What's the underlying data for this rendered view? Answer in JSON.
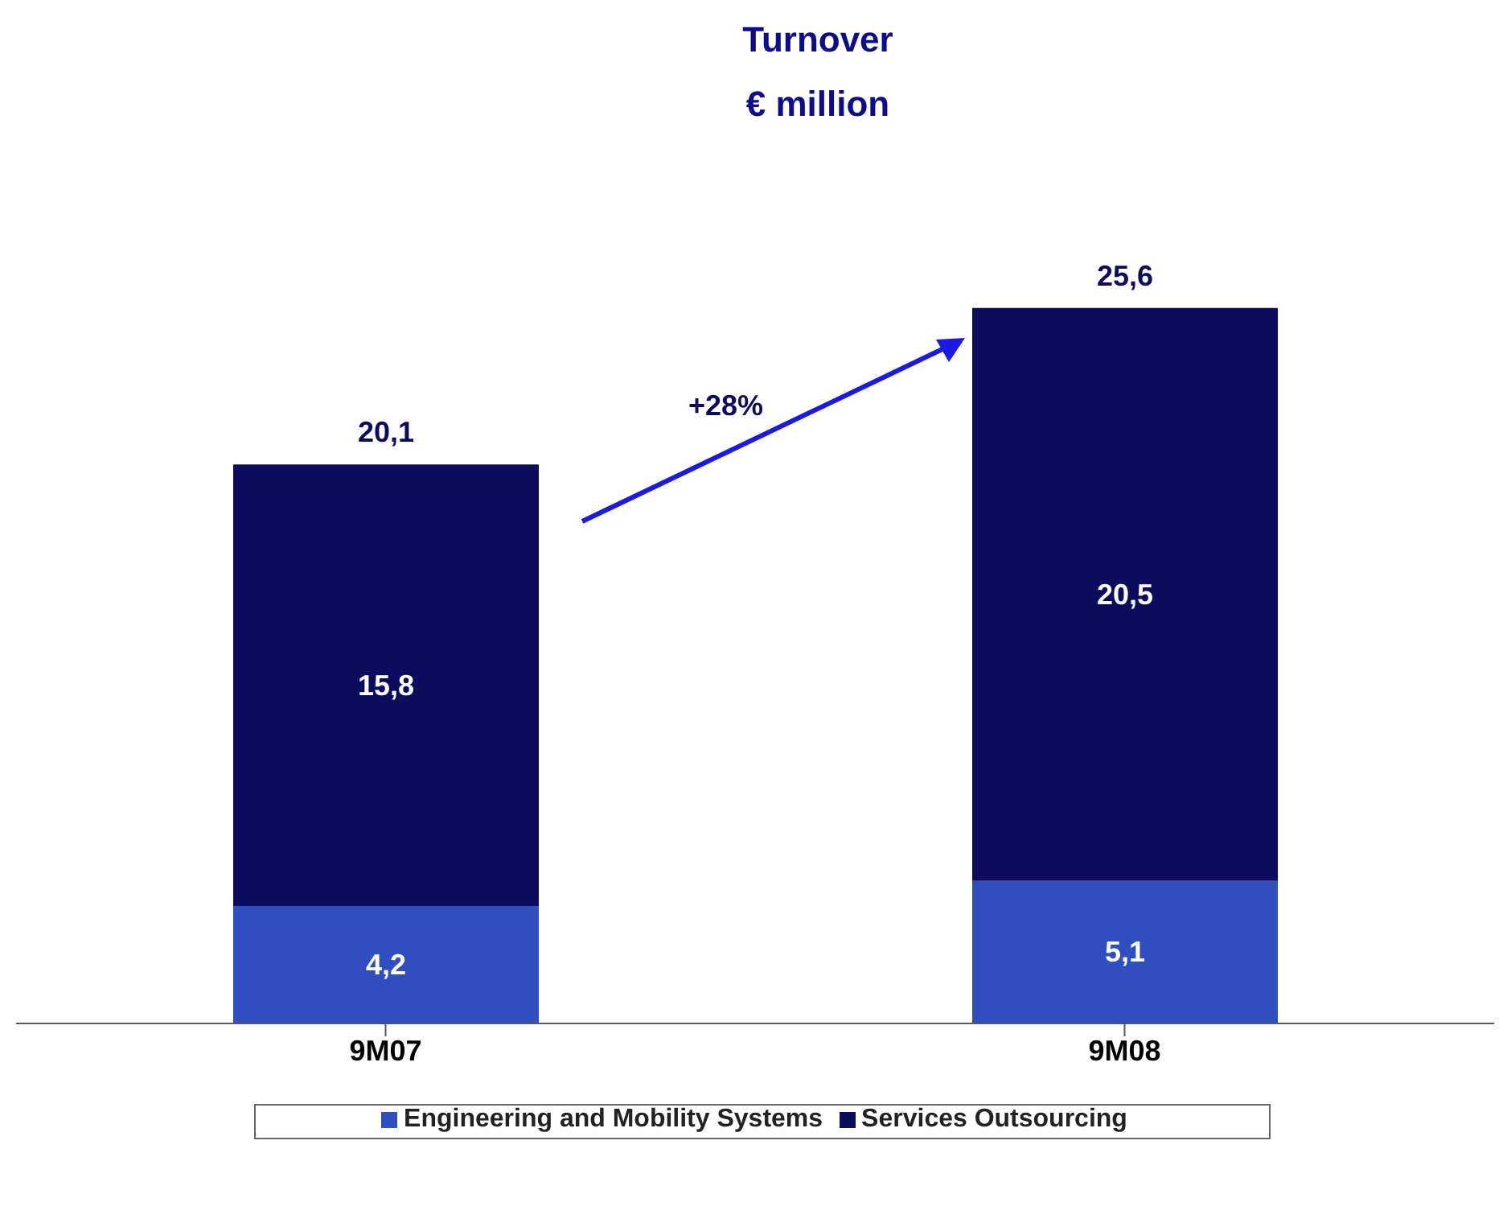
{
  "chart_data": {
    "type": "bar",
    "title": "Turnover",
    "subtitle": "€ million",
    "categories": [
      "9M07",
      "9M08"
    ],
    "stacked": true,
    "series": [
      {
        "name": "Engineering and Mobility Systems",
        "color": "#2f4fc0",
        "values": [
          4.2,
          5.1
        ],
        "value_labels": [
          "4,2",
          "5,1"
        ]
      },
      {
        "name": "Services Outsourcing",
        "color": "#0c0c5e",
        "values": [
          15.8,
          20.5
        ],
        "value_labels": [
          "15,8",
          "20,5"
        ]
      }
    ],
    "totals": [
      "20,1",
      "25,6"
    ],
    "annotations": [
      "+28%"
    ],
    "legend": "bottom",
    "grid": false,
    "tick_labels": "x"
  }
}
